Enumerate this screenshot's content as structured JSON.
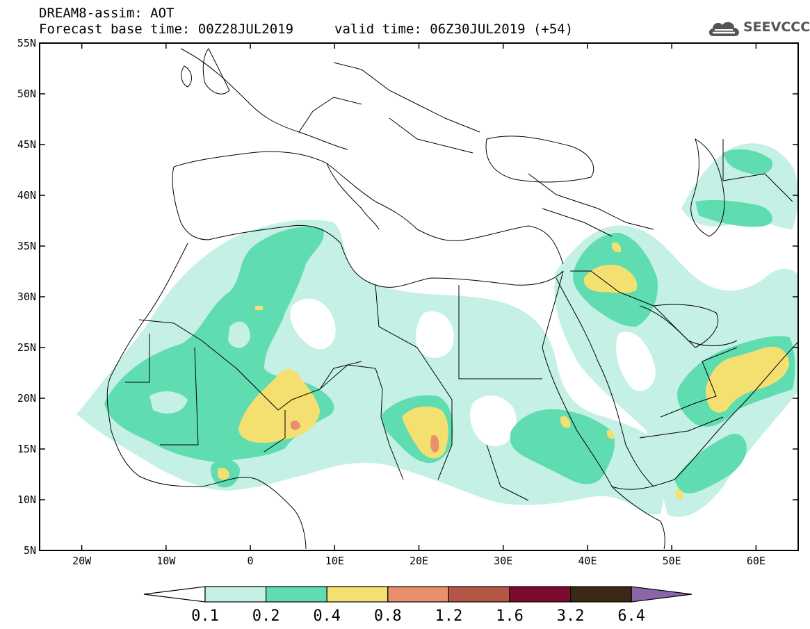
{
  "header": {
    "title": "DREAM8-assim: AOT",
    "base_time_label": "Forecast base time: 00Z28JUL2019",
    "valid_time_label": "valid time: 06Z30JUL2019 (+54)"
  },
  "logo": {
    "text": "SEEVCCC",
    "icon": "cloud-icon"
  },
  "map": {
    "lon_range": [
      -25,
      65
    ],
    "lat_range": [
      5,
      55
    ],
    "lon_ticks": [
      {
        "value": -20,
        "label": "20W"
      },
      {
        "value": -10,
        "label": "10W"
      },
      {
        "value": 0,
        "label": "0"
      },
      {
        "value": 10,
        "label": "10E"
      },
      {
        "value": 20,
        "label": "20E"
      },
      {
        "value": 30,
        "label": "30E"
      },
      {
        "value": 40,
        "label": "40E"
      },
      {
        "value": 50,
        "label": "50E"
      },
      {
        "value": 60,
        "label": "60E"
      }
    ],
    "lat_ticks": [
      {
        "value": 55,
        "label": "55N"
      },
      {
        "value": 50,
        "label": "50N"
      },
      {
        "value": 45,
        "label": "45N"
      },
      {
        "value": 40,
        "label": "40N"
      },
      {
        "value": 35,
        "label": "35N"
      },
      {
        "value": 30,
        "label": "30N"
      },
      {
        "value": 25,
        "label": "25N"
      },
      {
        "value": 20,
        "label": "20N"
      },
      {
        "value": 15,
        "label": "15N"
      },
      {
        "value": 10,
        "label": "10N"
      },
      {
        "value": 5,
        "label": "5N"
      }
    ]
  },
  "colorbar": {
    "colors": {
      "below": "#ffffff",
      "c1": "#c4f0e6",
      "c2": "#5fdcb0",
      "c3": "#f4e070",
      "c4": "#e8906a",
      "c5": "#b45646",
      "c6": "#7c0c2e",
      "c7": "#3c2814",
      "above": "#8c64a8"
    },
    "labels": [
      "0.1",
      "0.2",
      "0.4",
      "0.8",
      "1.2",
      "1.6",
      "3.2",
      "6.4"
    ]
  }
}
